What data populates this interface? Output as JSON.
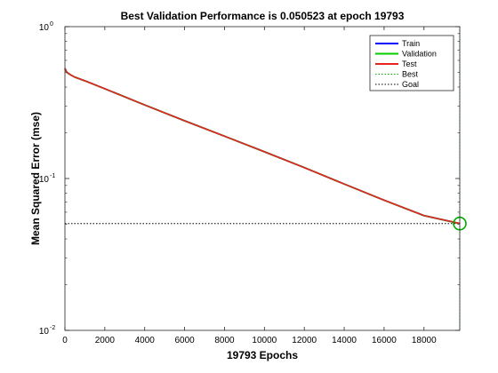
{
  "chart_data": {
    "type": "line",
    "title": "Best Validation Performance is 0.050523 at epoch 19793",
    "xlabel": "19793 Epochs",
    "ylabel": "Mean Squared Error  (mse)",
    "xlim": [
      0,
      19793
    ],
    "ylim": [
      0.01,
      1
    ],
    "yscale": "log",
    "grid": false,
    "legend_position": "top-right",
    "x_ticks": [
      0,
      2000,
      4000,
      6000,
      8000,
      10000,
      12000,
      14000,
      16000,
      18000
    ],
    "x_tick_labels": [
      "0",
      "2000",
      "4000",
      "6000",
      "8000",
      "10000",
      "12000",
      "14000",
      "16000",
      "18000"
    ],
    "y_ticks": [
      0.01,
      0.1,
      1
    ],
    "y_tick_base": [
      "10",
      "10",
      "10"
    ],
    "y_tick_exp": [
      "-2",
      "-1",
      "0"
    ],
    "x": [
      0,
      100,
      300,
      500,
      1000,
      2000,
      4000,
      6000,
      8000,
      10000,
      12000,
      14000,
      16000,
      18000,
      19793
    ],
    "series": [
      {
        "name": "Train",
        "color": "#0000ff",
        "values": [
          0.53,
          0.5,
          0.48,
          0.465,
          0.44,
          0.39,
          0.305,
          0.24,
          0.19,
          0.15,
          0.118,
          0.092,
          0.072,
          0.057,
          0.0505
        ]
      },
      {
        "name": "Validation",
        "color": "#00cc00",
        "values": [
          0.53,
          0.5,
          0.48,
          0.465,
          0.44,
          0.39,
          0.305,
          0.24,
          0.19,
          0.15,
          0.118,
          0.092,
          0.072,
          0.057,
          0.050523
        ]
      },
      {
        "name": "Test",
        "color": "#e8231c",
        "values": [
          0.53,
          0.5,
          0.48,
          0.465,
          0.44,
          0.39,
          0.305,
          0.24,
          0.19,
          0.15,
          0.118,
          0.092,
          0.072,
          0.057,
          0.0506
        ]
      }
    ],
    "best": {
      "name": "Best",
      "epoch": 19793,
      "value": 0.050523,
      "color": "#00aa00"
    },
    "goal": {
      "name": "Goal",
      "value": 0.050523,
      "color": "#000000"
    },
    "legend": [
      "Train",
      "Validation",
      "Test",
      "Best",
      "Goal"
    ]
  }
}
